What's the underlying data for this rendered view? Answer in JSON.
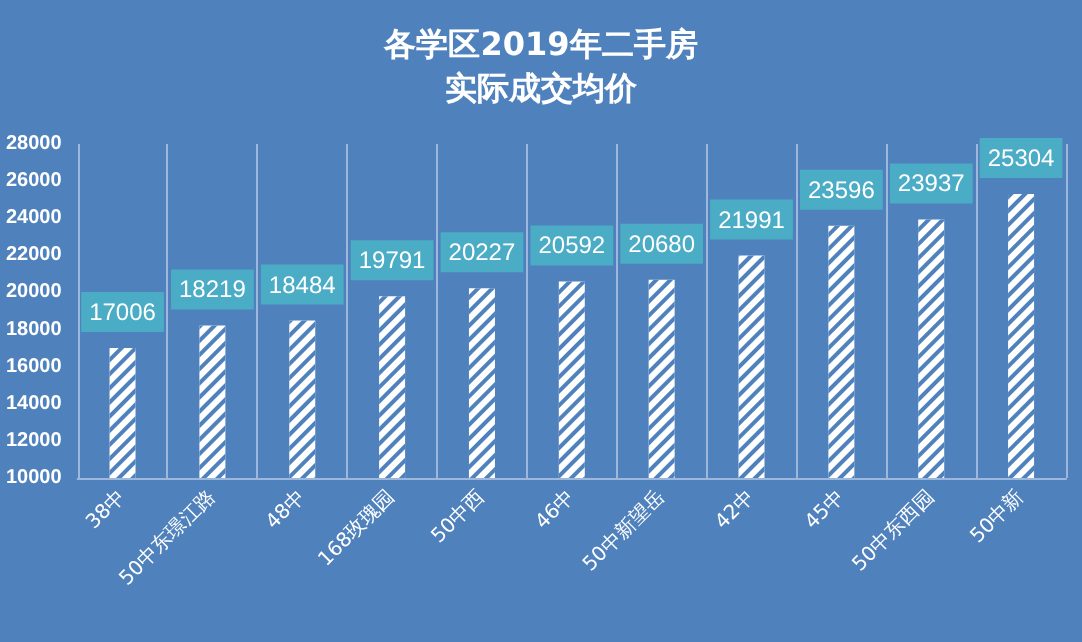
{
  "chart_data": {
    "type": "bar",
    "title": "各学区2019年二手房实际成交均价",
    "categories": [
      "38中",
      "50中东璟江路",
      "48中",
      "168玫瑰园",
      "50中西",
      "46中",
      "50中新望岳",
      "42中",
      "45中",
      "50中东西园",
      "50中新"
    ],
    "values": [
      17006,
      18219,
      18484,
      19791,
      20227,
      20592,
      20680,
      21991,
      23596,
      23937,
      25304
    ],
    "color": "#ffffff",
    "ylim": [
      10000,
      28000
    ],
    "yticks": [
      10000,
      12000,
      14000,
      16000,
      18000,
      20000,
      22000,
      24000,
      26000,
      28000
    ],
    "grid": "x",
    "data_labels": true
  }
}
